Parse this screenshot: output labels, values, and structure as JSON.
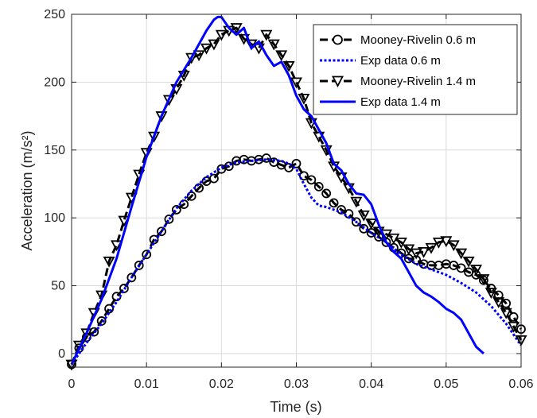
{
  "chart_data": {
    "type": "line",
    "xlabel": "Time (s)",
    "ylabel": "Acceleration (m/s²)",
    "xlim": [
      0,
      0.06
    ],
    "ylim": [
      -10,
      250
    ],
    "x_ticks": [
      "0",
      "0.01",
      "0.02",
      "0.03",
      "0.04",
      "0.05",
      "0.06"
    ],
    "y_ticks": [
      "0",
      "50",
      "100",
      "150",
      "200",
      "250"
    ],
    "grid": true,
    "legend_position": "top-right",
    "colors": {
      "mr_06": "#000000",
      "exp_06": "#0000FF",
      "mr_14": "#000000",
      "exp_14": "#0000FF",
      "grid": "#DADADA",
      "axis": "#262626"
    },
    "series": [
      {
        "name": "Mooney-Rivelin 0.6 m",
        "style": "dashed",
        "marker": "circle",
        "x": [
          0,
          0.001,
          0.002,
          0.003,
          0.004,
          0.005,
          0.006,
          0.007,
          0.008,
          0.009,
          0.01,
          0.011,
          0.012,
          0.013,
          0.014,
          0.015,
          0.016,
          0.017,
          0.018,
          0.019,
          0.02,
          0.021,
          0.022,
          0.023,
          0.024,
          0.025,
          0.026,
          0.027,
          0.028,
          0.029,
          0.03,
          0.031,
          0.032,
          0.033,
          0.034,
          0.035,
          0.036,
          0.037,
          0.038,
          0.039,
          0.04,
          0.041,
          0.042,
          0.043,
          0.044,
          0.045,
          0.046,
          0.047,
          0.048,
          0.049,
          0.05,
          0.051,
          0.052,
          0.053,
          0.054,
          0.055,
          0.056,
          0.057,
          0.058,
          0.059,
          0.06
        ],
        "y": [
          -8,
          4,
          12,
          16,
          24,
          33,
          42,
          48,
          56,
          65,
          73,
          84,
          90,
          99,
          106,
          110,
          116,
          122,
          127,
          129,
          136,
          138,
          142,
          143,
          142,
          143,
          144,
          141,
          139,
          137,
          140,
          131,
          128,
          123,
          118,
          111,
          106,
          103,
          97,
          92,
          89,
          86,
          82,
          78,
          74,
          70,
          69,
          66,
          65,
          65,
          66,
          65,
          63,
          60,
          58,
          54,
          48,
          43,
          37,
          27,
          18
        ]
      },
      {
        "name": "Exp data 0.6 m",
        "style": "dotted",
        "marker": "none",
        "x": [
          0,
          0.002,
          0.004,
          0.006,
          0.008,
          0.01,
          0.012,
          0.014,
          0.016,
          0.018,
          0.02,
          0.022,
          0.024,
          0.026,
          0.028,
          0.029,
          0.03,
          0.031,
          0.032,
          0.033,
          0.034,
          0.036,
          0.038,
          0.04,
          0.042,
          0.044,
          0.046,
          0.048,
          0.05,
          0.052,
          0.054,
          0.056,
          0.058,
          0.06
        ],
        "y": [
          -8,
          8,
          22,
          38,
          56,
          73,
          90,
          107,
          120,
          130,
          137,
          141,
          142,
          143,
          142,
          140,
          136,
          125,
          115,
          109,
          108,
          104,
          97,
          89,
          82,
          73,
          66,
          62,
          58,
          52,
          45,
          35,
          22,
          6
        ]
      },
      {
        "name": "Mooney-Rivelin 1.4 m",
        "style": "dashed",
        "marker": "triangle-down",
        "x": [
          0,
          0.001,
          0.002,
          0.003,
          0.004,
          0.005,
          0.006,
          0.007,
          0.008,
          0.009,
          0.01,
          0.011,
          0.012,
          0.013,
          0.014,
          0.015,
          0.016,
          0.017,
          0.018,
          0.019,
          0.02,
          0.021,
          0.022,
          0.023,
          0.024,
          0.025,
          0.026,
          0.027,
          0.028,
          0.029,
          0.03,
          0.031,
          0.032,
          0.033,
          0.034,
          0.035,
          0.036,
          0.037,
          0.038,
          0.039,
          0.04,
          0.041,
          0.042,
          0.043,
          0.044,
          0.045,
          0.046,
          0.047,
          0.048,
          0.049,
          0.05,
          0.051,
          0.052,
          0.053,
          0.054,
          0.055,
          0.056,
          0.057,
          0.058,
          0.059,
          0.06
        ],
        "y": [
          -8,
          6,
          15,
          30,
          43,
          68,
          80,
          98,
          115,
          132,
          148,
          160,
          175,
          187,
          195,
          205,
          218,
          220,
          225,
          228,
          235,
          238,
          240,
          232,
          228,
          225,
          235,
          228,
          220,
          212,
          200,
          188,
          170,
          160,
          150,
          138,
          130,
          122,
          112,
          102,
          96,
          90,
          88,
          85,
          82,
          77,
          74,
          75,
          78,
          82,
          83,
          80,
          74,
          68,
          62,
          55,
          45,
          38,
          30,
          20,
          10
        ]
      },
      {
        "name": "Exp data 1.4 m",
        "style": "solid",
        "marker": "none",
        "x": [
          0,
          0.002,
          0.004,
          0.006,
          0.008,
          0.01,
          0.012,
          0.014,
          0.016,
          0.017,
          0.018,
          0.019,
          0.0195,
          0.02,
          0.021,
          0.022,
          0.023,
          0.024,
          0.025,
          0.026,
          0.027,
          0.028,
          0.029,
          0.03,
          0.031,
          0.032,
          0.033,
          0.034,
          0.035,
          0.036,
          0.037,
          0.038,
          0.039,
          0.04,
          0.041,
          0.042,
          0.043,
          0.044,
          0.045,
          0.046,
          0.047,
          0.048,
          0.049,
          0.05,
          0.051,
          0.052,
          0.053,
          0.054,
          0.055
        ],
        "y": [
          -8,
          15,
          40,
          70,
          108,
          145,
          175,
          200,
          218,
          228,
          238,
          246,
          248,
          248,
          240,
          235,
          240,
          225,
          230,
          220,
          212,
          215,
          205,
          190,
          180,
          175,
          165,
          155,
          140,
          135,
          125,
          118,
          117,
          110,
          95,
          82,
          75,
          70,
          60,
          50,
          45,
          42,
          38,
          33,
          30,
          25,
          15,
          5,
          0
        ]
      }
    ]
  }
}
